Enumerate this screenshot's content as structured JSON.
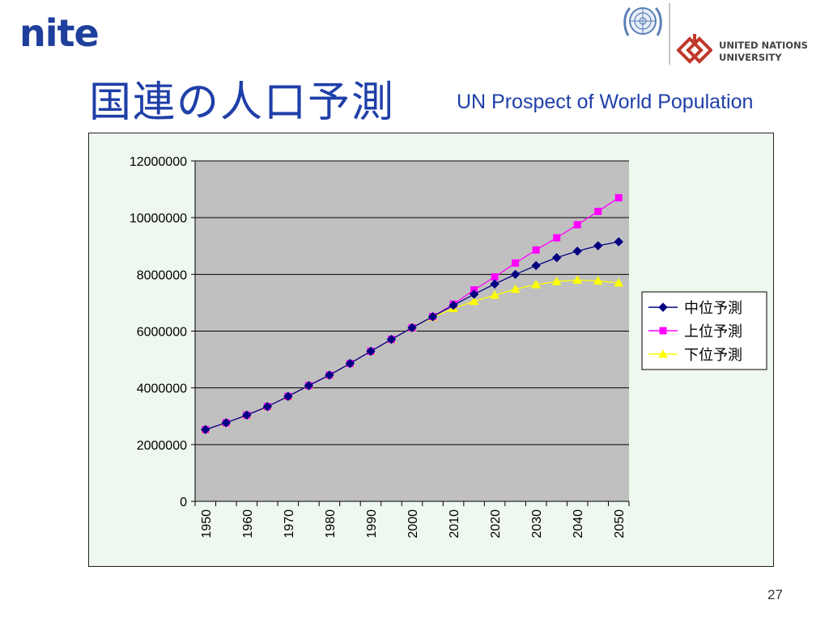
{
  "logos": {
    "nite": "nite",
    "unu_line1": "UNITED NATIONS",
    "unu_line2": "UNIVERSITY"
  },
  "title": {
    "main": "国連の人口予測",
    "sub": "UN Prospect of World Population"
  },
  "page_number": "27",
  "colors": {
    "title": "#1f3fa8",
    "plot_bg": "#c0c0c0",
    "frame_bg": "#eff8ee",
    "gridline": "#000000"
  },
  "chart_data": {
    "type": "line",
    "x": [
      1950,
      1955,
      1960,
      1965,
      1970,
      1975,
      1980,
      1985,
      1990,
      1995,
      2000,
      2005,
      2010,
      2015,
      2020,
      2025,
      2030,
      2035,
      2040,
      2045,
      2050
    ],
    "x_tick_labels": [
      "1950",
      "1960",
      "1970",
      "1980",
      "1990",
      "2000",
      "2010",
      "2020",
      "2030",
      "2040",
      "2050"
    ],
    "y_tick_labels": [
      "12000000",
      "10000000",
      "8000000",
      "6000000",
      "4000000",
      "2000000",
      "0"
    ],
    "ylim": [
      0,
      12000000
    ],
    "grid": true,
    "legend_position": "right",
    "series": [
      {
        "name": "中位予測",
        "color": "#000080",
        "marker": "diamond",
        "values": [
          2530000,
          2770000,
          3040000,
          3340000,
          3700000,
          4080000,
          4450000,
          4860000,
          5290000,
          5710000,
          6120000,
          6510000,
          6910000,
          7300000,
          7660000,
          8000000,
          8310000,
          8590000,
          8820000,
          9010000,
          9150000
        ]
      },
      {
        "name": "上位予測",
        "color": "#ff00ff",
        "marker": "square",
        "values": [
          2530000,
          2770000,
          3040000,
          3340000,
          3700000,
          4080000,
          4450000,
          4860000,
          5290000,
          5710000,
          6120000,
          6510000,
          6950000,
          7450000,
          7910000,
          8400000,
          8860000,
          9290000,
          9750000,
          10220000,
          10700000
        ]
      },
      {
        "name": "下位予測",
        "color": "#ffff00",
        "marker": "triangle",
        "values": [
          2530000,
          2770000,
          3040000,
          3340000,
          3700000,
          4080000,
          4450000,
          4860000,
          5290000,
          5710000,
          6120000,
          6490000,
          6800000,
          7050000,
          7270000,
          7480000,
          7640000,
          7750000,
          7800000,
          7770000,
          7700000
        ]
      }
    ]
  }
}
